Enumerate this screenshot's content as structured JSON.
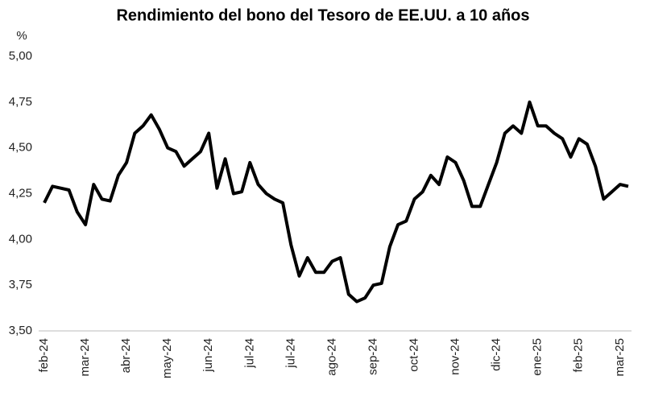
{
  "chart_data": {
    "type": "line",
    "title": "Rendimiento del bono del Tesoro de EE.UU. a 10 años",
    "y_label": "%",
    "categories": [
      "feb-24",
      null,
      null,
      null,
      null,
      "mar-24",
      null,
      null,
      null,
      null,
      "abr-24",
      null,
      null,
      null,
      null,
      "may-24",
      null,
      null,
      null,
      null,
      "jun-24",
      null,
      null,
      null,
      null,
      "jul-24",
      null,
      null,
      null,
      null,
      "jul-24",
      null,
      null,
      null,
      null,
      "ago-24",
      null,
      null,
      null,
      null,
      "sep-24",
      null,
      null,
      null,
      null,
      "oct-24",
      null,
      null,
      null,
      null,
      "nov-24",
      null,
      null,
      null,
      null,
      "dic-24",
      null,
      null,
      null,
      null,
      "ene-25",
      null,
      null,
      null,
      null,
      "feb-25",
      null,
      null,
      null,
      null,
      "mar-25",
      null
    ],
    "values": [
      4.2,
      4.29,
      4.28,
      4.27,
      4.15,
      4.08,
      4.3,
      4.22,
      4.21,
      4.35,
      4.42,
      4.58,
      4.62,
      4.68,
      4.6,
      4.5,
      4.48,
      4.4,
      4.44,
      4.48,
      4.58,
      4.28,
      4.44,
      4.25,
      4.26,
      4.42,
      4.3,
      4.25,
      4.22,
      4.2,
      3.97,
      3.8,
      3.9,
      3.82,
      3.82,
      3.88,
      3.9,
      3.7,
      3.66,
      3.68,
      3.75,
      3.76,
      3.96,
      4.08,
      4.1,
      4.22,
      4.26,
      4.35,
      4.3,
      4.45,
      4.42,
      4.32,
      4.18,
      4.18,
      4.3,
      4.42,
      4.58,
      4.62,
      4.58,
      4.75,
      4.62,
      4.62,
      4.58,
      4.55,
      4.45,
      4.55,
      4.52,
      4.4,
      4.22,
      4.26,
      4.3,
      4.29
    ],
    "color": "#000000",
    "ylim": [
      3.5,
      5.0
    ],
    "yticks": [
      {
        "value": 3.5,
        "label": "3,50"
      },
      {
        "value": 3.75,
        "label": "3,75"
      },
      {
        "value": 4.0,
        "label": "4,00"
      },
      {
        "value": 4.25,
        "label": "4,25"
      },
      {
        "value": 4.5,
        "label": "4,50"
      },
      {
        "value": 4.75,
        "label": "4,75"
      },
      {
        "value": 5.0,
        "label": "5,00"
      }
    ],
    "grid": false
  }
}
